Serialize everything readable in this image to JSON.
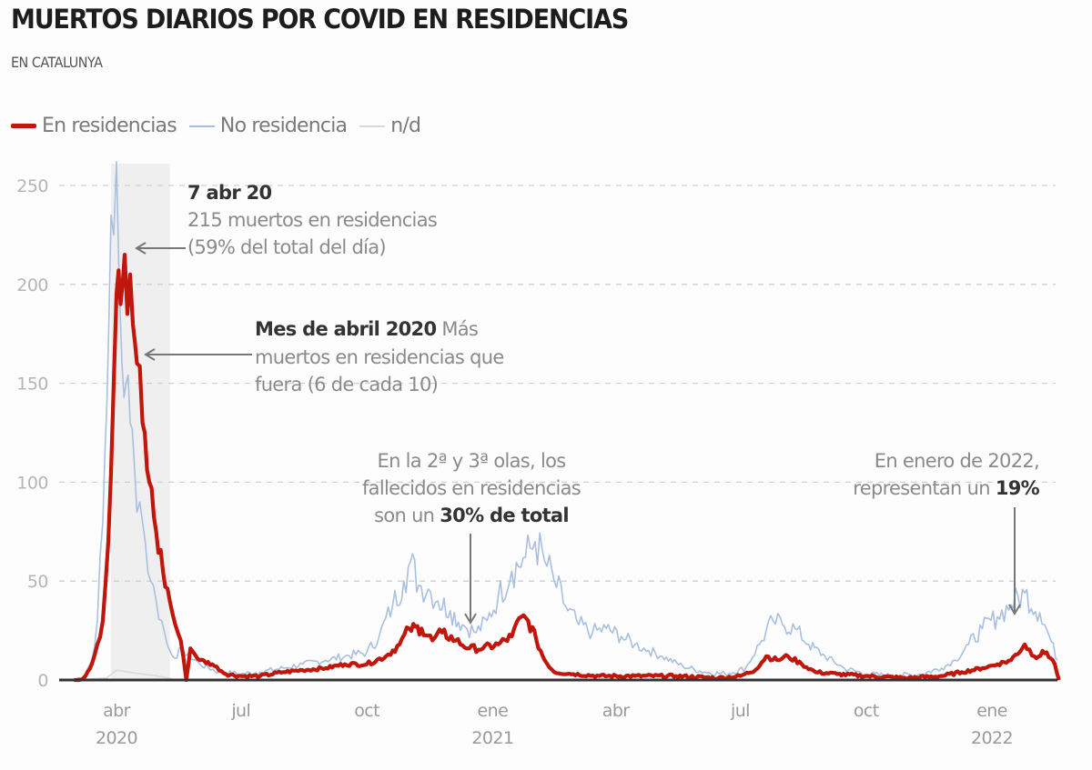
{
  "header": {
    "title": "MUERTOS DIARIOS POR COVID EN RESIDENCIAS",
    "subtitle": "EN CATALUNYA"
  },
  "legend": [
    {
      "label": "En residencias",
      "color": "#c0160c"
    },
    {
      "label": "No residencia",
      "color": "#a9bfe0"
    },
    {
      "label": "n/d",
      "color": "#d8d8e0"
    }
  ],
  "annotations": {
    "peak_title": "7 abr 20",
    "peak_line1": "215 muertos en residencias",
    "peak_line2": "(59% del total del día)",
    "april_bold": "Mes de abril 2020",
    "april_text1": " Más",
    "april_text2": "muertos en residencias que",
    "april_text3": "fuera (6 de cada 10)",
    "wave_line1": "En la 2ª y 3ª olas, los",
    "wave_line2": "fallecidos en residencias",
    "wave_line3_pre": "son un ",
    "wave_line3_bold": "30% de total",
    "jan_line1": "En enero de 2022,",
    "jan_line2_pre": "representan un ",
    "jan_line2_bold": "19%"
  },
  "chart_data": {
    "type": "line",
    "title": "MUERTOS DIARIOS POR COVID EN RESIDENCIAS",
    "subtitle": "EN CATALUNYA",
    "xlabel": "",
    "ylabel": "",
    "ylim": [
      0,
      260
    ],
    "yticks": [
      0,
      50,
      100,
      150,
      200,
      250
    ],
    "grid": true,
    "legend_position": "top-left",
    "x_range": [
      "2020-03-01",
      "2022-02-20"
    ],
    "x_ticks": [
      {
        "date": "2020-04-01",
        "label": "abr",
        "year": "2020"
      },
      {
        "date": "2020-07-01",
        "label": "jul",
        "year": ""
      },
      {
        "date": "2020-10-01",
        "label": "oct",
        "year": ""
      },
      {
        "date": "2021-01-01",
        "label": "ene",
        "year": "2021"
      },
      {
        "date": "2021-04-01",
        "label": "abr",
        "year": ""
      },
      {
        "date": "2021-07-01",
        "label": "jul",
        "year": ""
      },
      {
        "date": "2021-10-01",
        "label": "oct",
        "year": ""
      },
      {
        "date": "2022-01-01",
        "label": "ene",
        "year": "2022"
      }
    ],
    "highlight_range": [
      "2020-03-28",
      "2020-05-10"
    ],
    "series": [
      {
        "name": "No residencia",
        "color": "#a9bfe0",
        "points": [
          [
            "2020-03-01",
            0
          ],
          [
            "2020-03-08",
            2
          ],
          [
            "2020-03-14",
            10
          ],
          [
            "2020-03-18",
            30
          ],
          [
            "2020-03-22",
            80
          ],
          [
            "2020-03-25",
            140
          ],
          [
            "2020-03-28",
            235
          ],
          [
            "2020-03-30",
            225
          ],
          [
            "2020-04-01",
            262
          ],
          [
            "2020-04-03",
            200
          ],
          [
            "2020-04-05",
            160
          ],
          [
            "2020-04-08",
            150
          ],
          [
            "2020-04-11",
            130
          ],
          [
            "2020-04-14",
            110
          ],
          [
            "2020-04-18",
            90
          ],
          [
            "2020-04-22",
            70
          ],
          [
            "2020-04-26",
            50
          ],
          [
            "2020-04-30",
            40
          ],
          [
            "2020-05-04",
            30
          ],
          [
            "2020-05-08",
            18
          ],
          [
            "2020-05-12",
            12
          ],
          [
            "2020-05-20",
            15
          ],
          [
            "2020-06-01",
            8
          ],
          [
            "2020-06-15",
            4
          ],
          [
            "2020-07-01",
            3
          ],
          [
            "2020-07-15",
            4
          ],
          [
            "2020-08-01",
            6
          ],
          [
            "2020-08-15",
            8
          ],
          [
            "2020-09-01",
            10
          ],
          [
            "2020-09-15",
            12
          ],
          [
            "2020-10-01",
            14
          ],
          [
            "2020-10-10",
            22
          ],
          [
            "2020-10-20",
            38
          ],
          [
            "2020-10-28",
            50
          ],
          [
            "2020-11-02",
            60
          ],
          [
            "2020-11-08",
            48
          ],
          [
            "2020-11-15",
            46
          ],
          [
            "2020-11-22",
            40
          ],
          [
            "2020-12-01",
            35
          ],
          [
            "2020-12-10",
            28
          ],
          [
            "2020-12-20",
            24
          ],
          [
            "2020-12-28",
            30
          ],
          [
            "2021-01-05",
            42
          ],
          [
            "2021-01-15",
            55
          ],
          [
            "2021-01-25",
            62
          ],
          [
            "2021-02-01",
            70
          ],
          [
            "2021-02-08",
            60
          ],
          [
            "2021-02-15",
            50
          ],
          [
            "2021-02-25",
            35
          ],
          [
            "2021-03-05",
            28
          ],
          [
            "2021-03-15",
            24
          ],
          [
            "2021-03-25",
            26
          ],
          [
            "2021-04-05",
            22
          ],
          [
            "2021-04-15",
            18
          ],
          [
            "2021-04-25",
            15
          ],
          [
            "2021-05-05",
            12
          ],
          [
            "2021-05-20",
            7
          ],
          [
            "2021-06-05",
            4
          ],
          [
            "2021-06-20",
            3
          ],
          [
            "2021-07-05",
            6
          ],
          [
            "2021-07-15",
            18
          ],
          [
            "2021-07-25",
            30
          ],
          [
            "2021-08-01",
            28
          ],
          [
            "2021-08-10",
            26
          ],
          [
            "2021-08-20",
            18
          ],
          [
            "2021-09-01",
            12
          ],
          [
            "2021-09-15",
            6
          ],
          [
            "2021-10-01",
            3
          ],
          [
            "2021-10-20",
            2
          ],
          [
            "2021-11-10",
            3
          ],
          [
            "2021-11-25",
            6
          ],
          [
            "2021-12-05",
            10
          ],
          [
            "2021-12-15",
            18
          ],
          [
            "2021-12-25",
            26
          ],
          [
            "2022-01-05",
            32
          ],
          [
            "2022-01-15",
            38
          ],
          [
            "2022-01-25",
            44
          ],
          [
            "2022-02-05",
            34
          ],
          [
            "2022-02-12",
            22
          ],
          [
            "2022-02-18",
            10
          ]
        ]
      },
      {
        "name": "n/d",
        "color": "#d8d8e0",
        "points": [
          [
            "2020-03-01",
            0
          ],
          [
            "2020-03-25",
            1
          ],
          [
            "2020-04-01",
            5
          ],
          [
            "2020-04-10",
            4
          ],
          [
            "2020-04-20",
            3
          ],
          [
            "2020-05-01",
            2
          ],
          [
            "2020-05-15",
            0
          ],
          [
            "2021-02-20",
            0
          ],
          [
            "2022-02-20",
            0
          ]
        ]
      },
      {
        "name": "En residencias",
        "color": "#c0160c",
        "points": [
          [
            "2020-03-01",
            0
          ],
          [
            "2020-03-08",
            1
          ],
          [
            "2020-03-14",
            8
          ],
          [
            "2020-03-18",
            18
          ],
          [
            "2020-03-22",
            30
          ],
          [
            "2020-03-26",
            70
          ],
          [
            "2020-03-30",
            150
          ],
          [
            "2020-04-01",
            195
          ],
          [
            "2020-04-04",
            190
          ],
          [
            "2020-04-07",
            215
          ],
          [
            "2020-04-09",
            185
          ],
          [
            "2020-04-11",
            205
          ],
          [
            "2020-04-13",
            180
          ],
          [
            "2020-04-16",
            160
          ],
          [
            "2020-04-20",
            130
          ],
          [
            "2020-04-25",
            100
          ],
          [
            "2020-04-30",
            75
          ],
          [
            "2020-05-05",
            55
          ],
          [
            "2020-05-10",
            40
          ],
          [
            "2020-05-14",
            28
          ],
          [
            "2020-05-18",
            20
          ],
          [
            "2020-05-22",
            0
          ],
          [
            "2020-05-25",
            16
          ],
          [
            "2020-06-01",
            10
          ],
          [
            "2020-06-10",
            8
          ],
          [
            "2020-06-20",
            3
          ],
          [
            "2020-07-01",
            2
          ],
          [
            "2020-07-15",
            2
          ],
          [
            "2020-08-01",
            4
          ],
          [
            "2020-08-15",
            5
          ],
          [
            "2020-09-01",
            6
          ],
          [
            "2020-09-15",
            8
          ],
          [
            "2020-10-01",
            8
          ],
          [
            "2020-10-15",
            12
          ],
          [
            "2020-10-25",
            18
          ],
          [
            "2020-11-01",
            26
          ],
          [
            "2020-11-10",
            26
          ],
          [
            "2020-11-18",
            20
          ],
          [
            "2020-11-25",
            24
          ],
          [
            "2020-12-05",
            20
          ],
          [
            "2020-12-15",
            16
          ],
          [
            "2020-12-25",
            16
          ],
          [
            "2021-01-05",
            18
          ],
          [
            "2021-01-15",
            22
          ],
          [
            "2021-01-22",
            32
          ],
          [
            "2021-01-27",
            30
          ],
          [
            "2021-02-02",
            20
          ],
          [
            "2021-02-08",
            10
          ],
          [
            "2021-02-15",
            4
          ],
          [
            "2021-03-01",
            3
          ],
          [
            "2021-03-20",
            2
          ],
          [
            "2021-04-15",
            2
          ],
          [
            "2021-05-15",
            2
          ],
          [
            "2021-06-15",
            1
          ],
          [
            "2021-07-01",
            2
          ],
          [
            "2021-07-12",
            5
          ],
          [
            "2021-07-20",
            12
          ],
          [
            "2021-07-28",
            10
          ],
          [
            "2021-08-05",
            12
          ],
          [
            "2021-08-15",
            8
          ],
          [
            "2021-08-25",
            4
          ],
          [
            "2021-09-10",
            3
          ],
          [
            "2021-10-01",
            2
          ],
          [
            "2021-11-01",
            1
          ],
          [
            "2021-11-25",
            2
          ],
          [
            "2021-12-10",
            4
          ],
          [
            "2021-12-25",
            6
          ],
          [
            "2022-01-05",
            8
          ],
          [
            "2022-01-15",
            10
          ],
          [
            "2022-01-25",
            18
          ],
          [
            "2022-02-01",
            12
          ],
          [
            "2022-02-10",
            14
          ],
          [
            "2022-02-16",
            8
          ],
          [
            "2022-02-19",
            0
          ]
        ]
      }
    ]
  }
}
